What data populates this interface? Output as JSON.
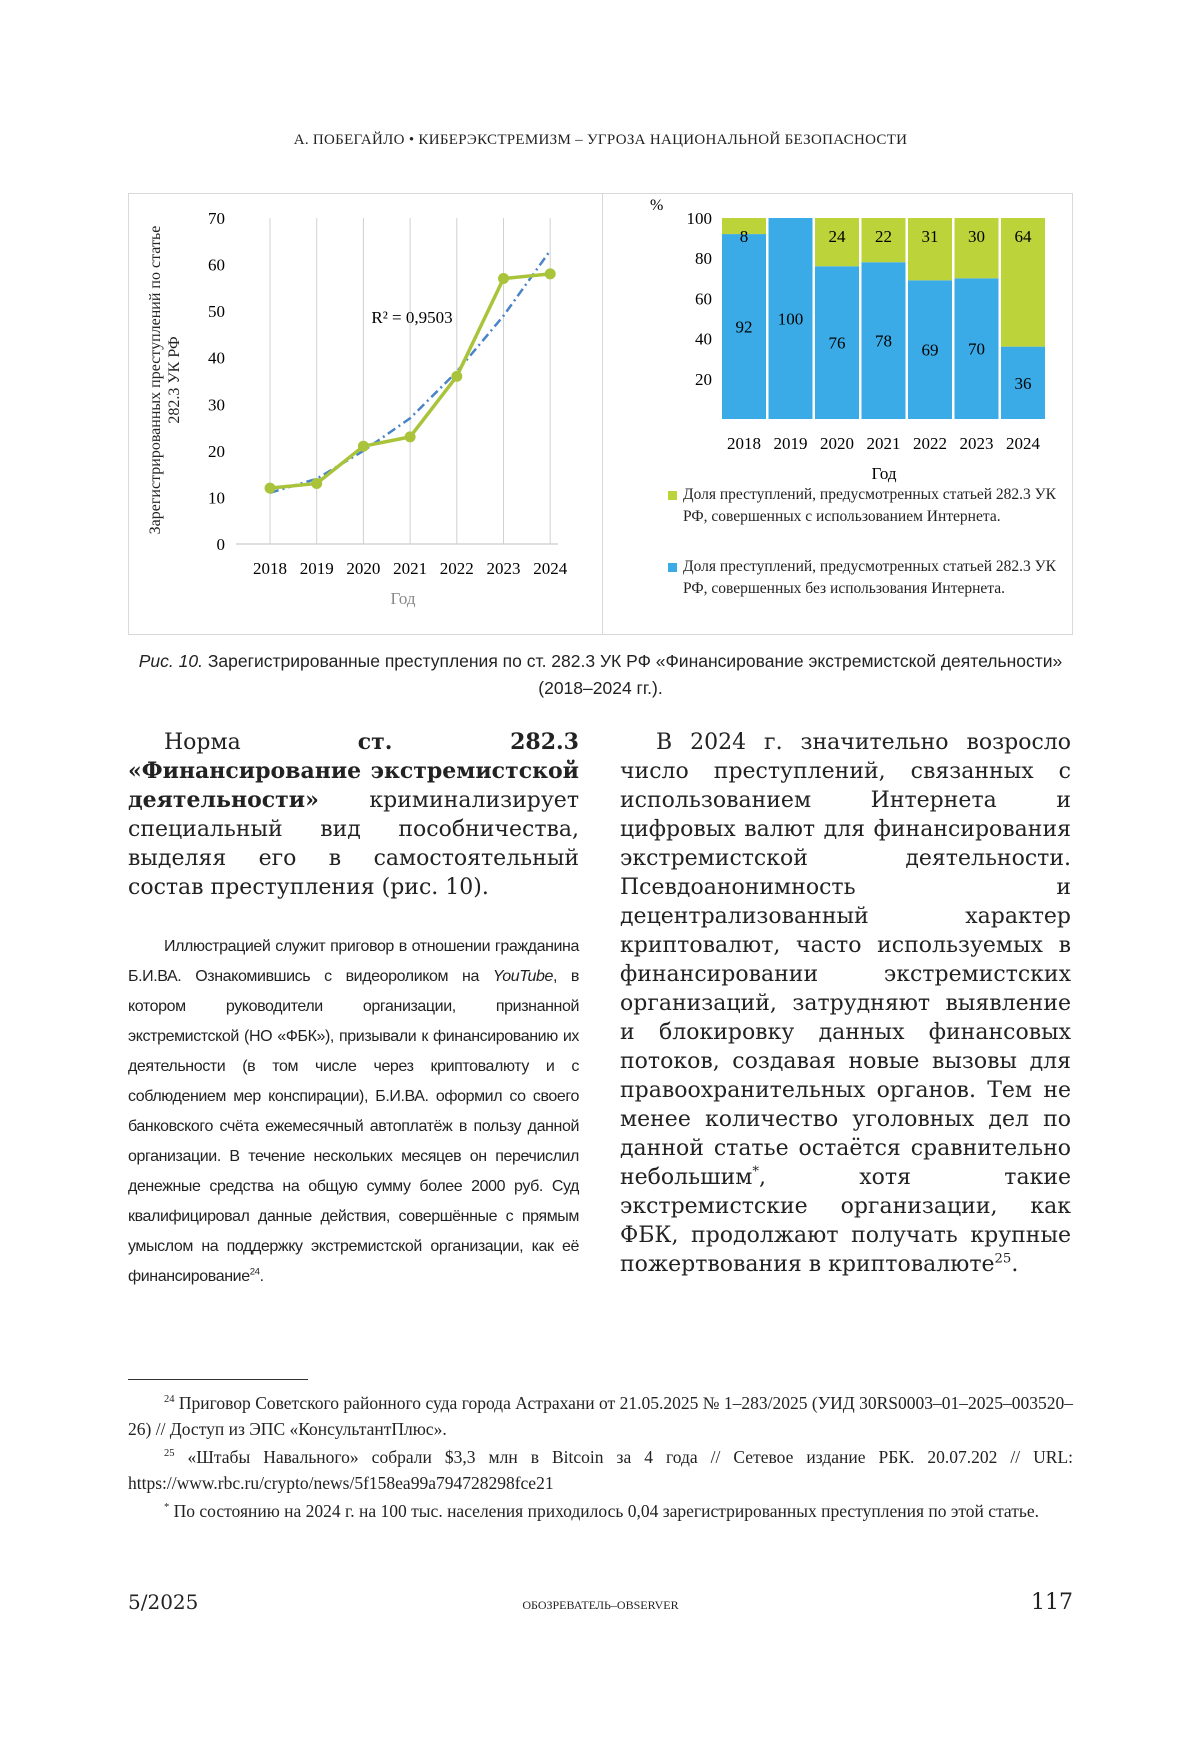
{
  "header": "А. ПОБЕГАЙЛО • КИБЕРЭКСТРЕМИЗМ – УГРОЗА НАЦИОНАЛЬНОЙ БЕЗОПАСНОСТИ",
  "chart_data": [
    {
      "type": "line",
      "ylabel": "Зарегистрированных преступлений по статье 282.3 УК РФ",
      "xlabel": "Год",
      "annotation": "R² = 0,9503",
      "categories": [
        "2018",
        "2019",
        "2020",
        "2021",
        "2022",
        "2023",
        "2024"
      ],
      "series": [
        {
          "color": "#a9c43b",
          "values": [
            12,
            13,
            21,
            23,
            36,
            57,
            58
          ]
        },
        {
          "color": "#4a84c8",
          "style": "dashdot",
          "values": [
            11,
            14,
            20,
            27,
            37,
            49,
            63
          ]
        }
      ],
      "ylim": [
        0,
        70
      ],
      "yticks": [
        0,
        10,
        20,
        30,
        40,
        50,
        60,
        70
      ],
      "grid": "x"
    },
    {
      "type": "stacked-bar",
      "yunit": "%",
      "xlabel": "Год",
      "categories": [
        "2018",
        "2019",
        "2020",
        "2021",
        "2022",
        "2023",
        "2024"
      ],
      "series": [
        {
          "name": "Доля преступлений, предусмотренных статьей 282.3 УК РФ, совершенных без использования Интернета.",
          "color": "#3aabe6",
          "values": [
            92,
            100,
            76,
            78,
            69,
            70,
            36
          ]
        },
        {
          "name": "Доля преступлений, предусмотренных статьей 282.3 УК РФ, совершенных с использованием Интернета.",
          "color": "#bdd33a",
          "values": [
            8,
            null,
            24,
            22,
            31,
            30,
            64
          ]
        }
      ],
      "ylim": [
        0,
        100
      ],
      "yticks": [
        20,
        40,
        60,
        80,
        100
      ]
    }
  ],
  "caption": {
    "label": "Рис. 10.",
    "text": " Зарегистрированные преступления по ст. 282.3 УК РФ «Финансирование экстремистской деятельности» (2018–2024 гг.)."
  },
  "columns": {
    "left": [
      [
        "Норма ",
        "ст. 282.3 «Финансирование экстремистской деятельности»",
        " криминализирует специальный вид пособничества, выделяя его в самостоятельный состав преступления (рис. 10)."
      ],
      [
        "Иллюстрацией служит приговор в отношении гражданина Б.И.ВА. Ознакомившись с видеороликом на ",
        "YouTube",
        ", в котором руководители организации, признанной экстремистской (НО «ФБК»), призывали к финансированию их деятельности (в том числе через криптовалюту и с соблюдением мер конспирации), Б.И.ВА. оформил со своего банковского счёта ежемесячный автоплатёж в пользу данной организации. В течение нескольких месяцев он перечислил денежные средства на общую сумму более 2000 руб. Суд квалифицировал данные действия, совершённые с прямым умыслом на поддержку экстремистской организации, как её финансирование",
        "24",
        "."
      ]
    ],
    "right": [
      "В 2024 г. значительно возросло число преступлений, связанных с использованием Интернета и цифровых валют для финансирования экстремистской деятельности. Псевдоанонимность и децентрализованный характер криптовалют, часто используемых в финансировании экстремистских организаций, затрудняют выявление и блокировку данных финансовых потоков, создавая новые вызовы для правоохранительных органов. Тем не менее количество уголовных дел по данной статье остаётся сравнительно небольшим",
      "*",
      ", хотя такие экстремистские организации, как ФБК, продолжают получать крупные пожертвования в криптовалюте",
      "25",
      "."
    ]
  },
  "footnotes": [
    {
      "mark": "24",
      "text": " Приговор Советского районного суда города Астрахани от 21.05.2025 № 1–283/2025 (УИД 30RS0003–01–2025–003520–26) // Доступ из ЭПС «КонсультантПлюс»."
    },
    {
      "mark": "25",
      "text": " «Штабы Навального» собрали $3,3 млн в Bitcoin за 4 года // Сетевое издание РБК. 20.07.202 // URL: https://www.rbc.ru/crypto/news/5f158ea99a794728298fce21"
    },
    {
      "mark": "*",
      "text": " По состоянию на 2024 г. на 100 тыс. населения приходилось 0,04 зарегистрированных преступления по этой статье."
    }
  ],
  "footer": {
    "issue": "5/2025",
    "journal": "ОБОЗРЕВАТЕЛЬ–OBSERVER",
    "page": "117"
  }
}
